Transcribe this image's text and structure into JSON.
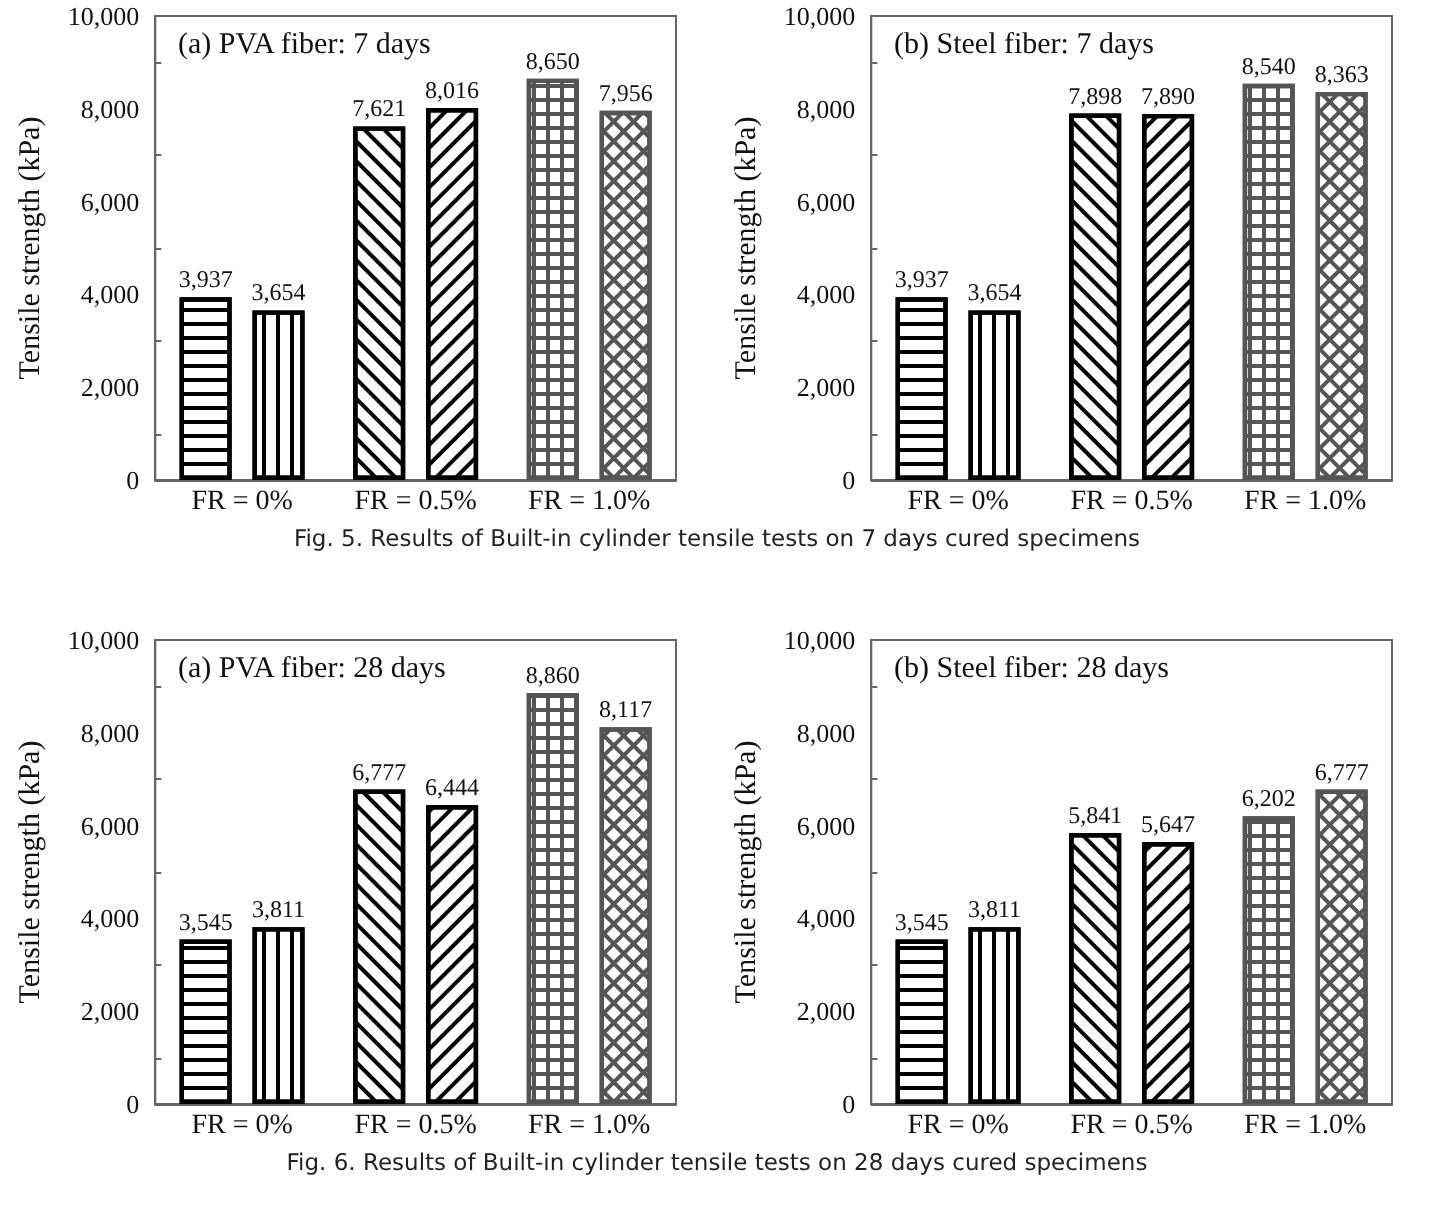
{
  "chart_data": [
    {
      "type": "bar",
      "title": "(a) PVA fiber: 7 days",
      "ylabel": "Tensile strength (kPa)",
      "categories": [
        "FR = 0%",
        "FR = 0.5%",
        "FR = 1.0%"
      ],
      "series": [
        {
          "color": "#ffffff",
          "values": [
            3937,
            7621,
            8650
          ],
          "value_labels": [
            "3,937",
            "7,621",
            "8,650"
          ]
        },
        {
          "color": "#ffffff",
          "values": [
            3654,
            8016,
            7956
          ],
          "value_labels": [
            "3,654",
            "8,016",
            "7,956"
          ]
        }
      ],
      "ylim": [
        0,
        10000
      ],
      "yticks": [
        {
          "value": 0,
          "label": "0"
        },
        {
          "value": 2000,
          "label": "2,000"
        },
        {
          "value": 4000,
          "label": "4,000"
        },
        {
          "value": 6000,
          "label": "6,000"
        },
        {
          "value": 8000,
          "label": "8,000"
        },
        {
          "value": 10000,
          "label": "10,000"
        }
      ],
      "grid": false
    },
    {
      "type": "bar",
      "title": "(b) Steel fiber: 7 days",
      "ylabel": "Tensile strength (kPa)",
      "categories": [
        "FR = 0%",
        "FR = 0.5%",
        "FR = 1.0%"
      ],
      "series": [
        {
          "color": "#ffffff",
          "values": [
            3937,
            7898,
            8540
          ],
          "value_labels": [
            "3,937",
            "7,898",
            "8,540"
          ]
        },
        {
          "color": "#ffffff",
          "values": [
            3654,
            7890,
            8363
          ],
          "value_labels": [
            "3,654",
            "7,890",
            "8,363"
          ]
        }
      ],
      "ylim": [
        0,
        10000
      ],
      "yticks": [
        {
          "value": 0,
          "label": "0"
        },
        {
          "value": 2000,
          "label": "2,000"
        },
        {
          "value": 4000,
          "label": "4,000"
        },
        {
          "value": 6000,
          "label": "6,000"
        },
        {
          "value": 8000,
          "label": "8,000"
        },
        {
          "value": 10000,
          "label": "10,000"
        }
      ],
      "grid": false,
      "annotations": [
        "Fig. 5. Results of Built-in cylinder tensile tests on 7 days cured specimens"
      ]
    },
    {
      "type": "bar",
      "title": "(a) PVA fiber: 28 days",
      "ylabel": "Tensile strength (kPa)",
      "categories": [
        "FR = 0%",
        "FR = 0.5%",
        "FR = 1.0%"
      ],
      "series": [
        {
          "color": "#ffffff",
          "values": [
            3545,
            6777,
            8860
          ],
          "value_labels": [
            "3,545",
            "6,777",
            "8,860"
          ]
        },
        {
          "color": "#ffffff",
          "values": [
            3811,
            6444,
            8117
          ],
          "value_labels": [
            "3,811",
            "6,444",
            "8,117"
          ]
        }
      ],
      "ylim": [
        0,
        10000
      ],
      "yticks": [
        {
          "value": 0,
          "label": "0"
        },
        {
          "value": 2000,
          "label": "2,000"
        },
        {
          "value": 4000,
          "label": "4,000"
        },
        {
          "value": 6000,
          "label": "6,000"
        },
        {
          "value": 8000,
          "label": "8,000"
        },
        {
          "value": 10000,
          "label": "10,000"
        }
      ],
      "grid": false
    },
    {
      "type": "bar",
      "title": "(b) Steel fiber: 28 days",
      "ylabel": "Tensile strength (kPa)",
      "categories": [
        "FR = 0%",
        "FR = 0.5%",
        "FR = 1.0%"
      ],
      "series": [
        {
          "color": "#ffffff",
          "values": [
            3545,
            5841,
            6202
          ],
          "value_labels": [
            "3,545",
            "5,841",
            "6,202"
          ]
        },
        {
          "color": "#ffffff",
          "values": [
            3811,
            5647,
            6777
          ],
          "value_labels": [
            "3,811",
            "5,647",
            "6,777"
          ]
        }
      ],
      "ylim": [
        0,
        10000
      ],
      "yticks": [
        {
          "value": 0,
          "label": "0"
        },
        {
          "value": 2000,
          "label": "2,000"
        },
        {
          "value": 4000,
          "label": "4,000"
        },
        {
          "value": 6000,
          "label": "6,000"
        },
        {
          "value": 8000,
          "label": "8,000"
        },
        {
          "value": 10000,
          "label": "10,000"
        }
      ],
      "grid": false,
      "annotations": [
        "Fig. 6. Results of Built-in cylinder tensile tests on 28 days cured specimens"
      ]
    }
  ]
}
